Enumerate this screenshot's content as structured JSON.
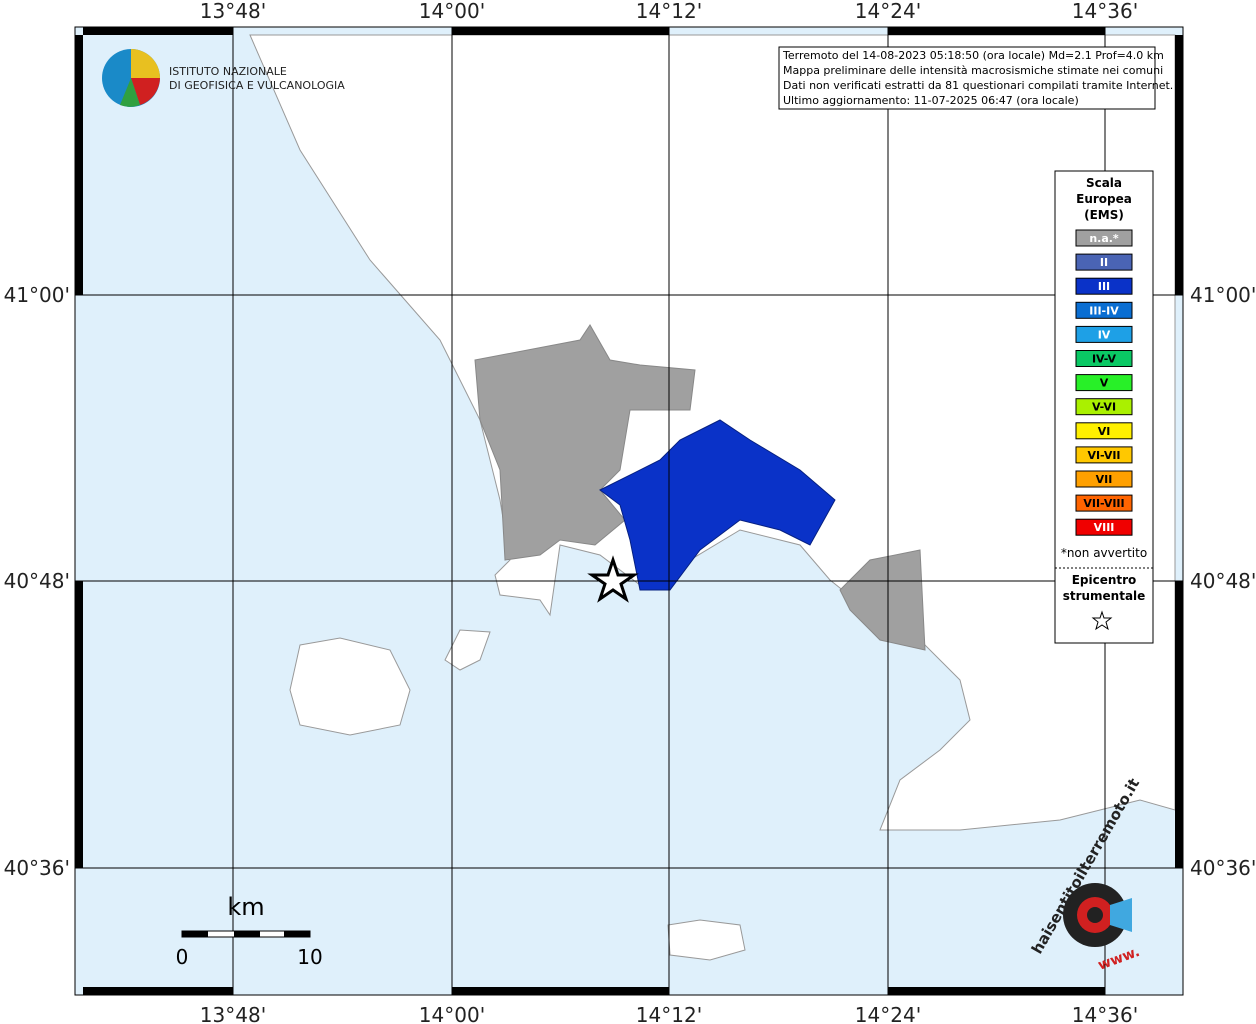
{
  "header": {
    "institute": [
      "ISTITUTO NAZIONALE",
      "DI GEOFISICA E VULCANOLOGIA"
    ]
  },
  "info": [
    "Terremoto del 14-08-2023 05:18:50 (ora locale) Md=2.1 Prof=4.0 km",
    "Mappa preliminare delle intensità macrosismiche stimate nei comuni",
    "Dati non verificati estratti da 81 questionari compilati tramite Internet.",
    "Ultimo aggiornamento: 11-07-2025 06:47 (ora locale)"
  ],
  "axes": {
    "lon_labels": [
      "13°48'",
      "14°00'",
      "14°12'",
      "14°24'",
      "14°36'"
    ],
    "lat_labels": [
      "41°00'",
      "40°48'",
      "40°36'"
    ]
  },
  "legend": {
    "title": [
      "Scala",
      "Europea",
      "(EMS)"
    ],
    "items": [
      {
        "label": "n.a.*",
        "color": "#a0a0a0"
      },
      {
        "label": "II",
        "color": "#4a64b4"
      },
      {
        "label": "III",
        "color": "#0a32c8"
      },
      {
        "label": "III-IV",
        "color": "#0a6ed2"
      },
      {
        "label": "IV",
        "color": "#1ea0e6"
      },
      {
        "label": "IV-V",
        "color": "#0ac864"
      },
      {
        "label": "V",
        "color": "#28f028"
      },
      {
        "label": "V-VI",
        "color": "#aaf000"
      },
      {
        "label": "VI",
        "color": "#fff000"
      },
      {
        "label": "VI-VII",
        "color": "#ffc800"
      },
      {
        "label": "VII",
        "color": "#ffa000"
      },
      {
        "label": "VII-VIII",
        "color": "#ff6400"
      },
      {
        "label": "VIII",
        "color": "#f00000"
      }
    ],
    "note": "*non avvertito",
    "epicenter": [
      "Epicentro",
      "strumentale"
    ]
  },
  "scale_bar": {
    "unit": "km",
    "ticks": [
      0,
      10
    ]
  },
  "logo": {
    "text": "haisentitoilterremoto.it",
    "www": "www."
  }
}
